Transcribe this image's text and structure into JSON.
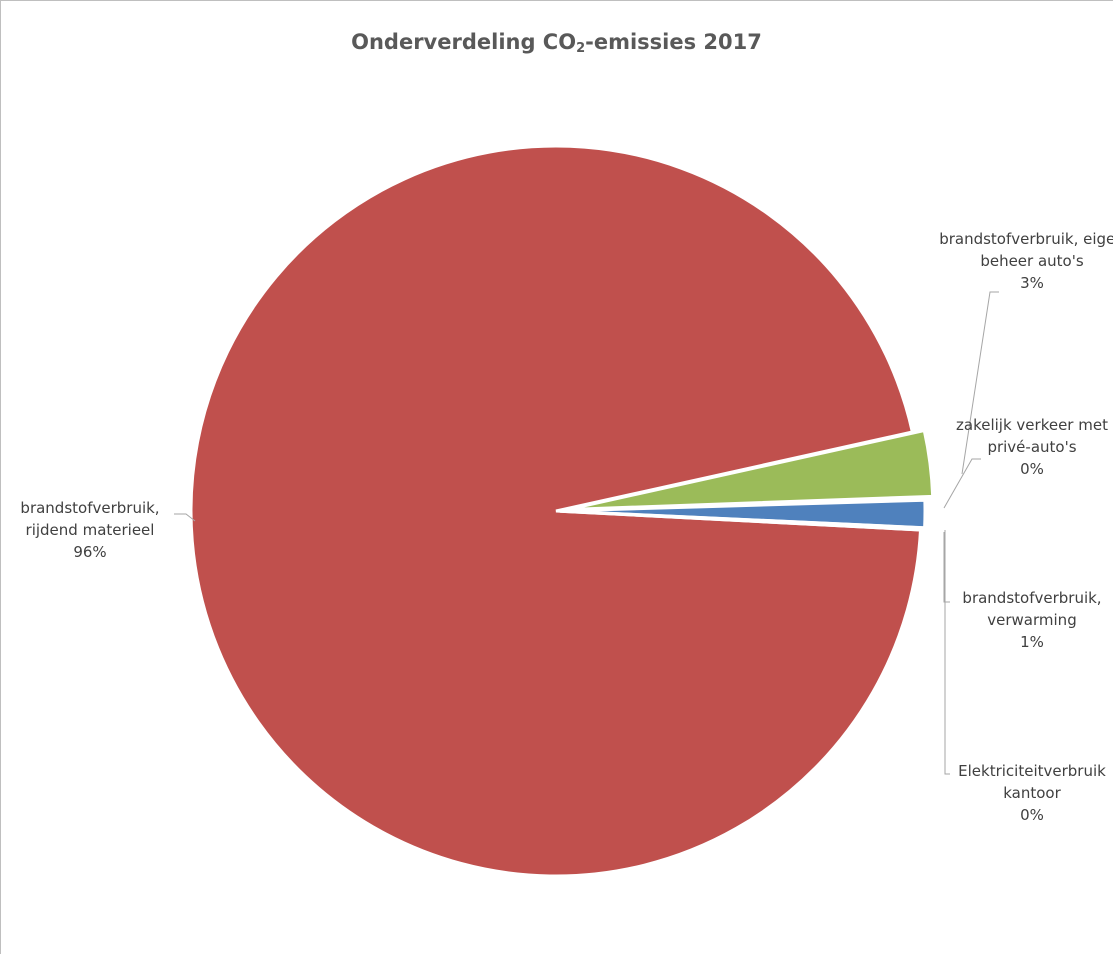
{
  "chart_data": {
    "type": "pie",
    "title": {
      "main": "Onderverdeling CO",
      "subscript": "2",
      "rest": "-emissies 2017"
    },
    "slices": [
      {
        "label_lines": [
          "brandstofverbruik,",
          "rijdend materieel"
        ],
        "percent_label": "96%",
        "value": 95.7,
        "color": "#c0504d"
      },
      {
        "label_lines": [
          "brandstofverbruik, eigen",
          "beheer auto's"
        ],
        "percent_label": "3%",
        "value": 2.9,
        "color": "#9bbb59"
      },
      {
        "label_lines": [
          "zakelijk verkeer met",
          "privé-auto's"
        ],
        "percent_label": "0%",
        "value": 0.1,
        "color": "#8064a2"
      },
      {
        "label_lines": [
          "brandstofverbruik,",
          "verwarming"
        ],
        "percent_label": "1%",
        "value": 1.2,
        "color": "#4f81bd"
      },
      {
        "label_lines": [
          "Elektriciteitverbruik",
          "kantoor"
        ],
        "percent_label": "0%",
        "value": 0.1,
        "color": "#4bacc6"
      }
    ]
  }
}
